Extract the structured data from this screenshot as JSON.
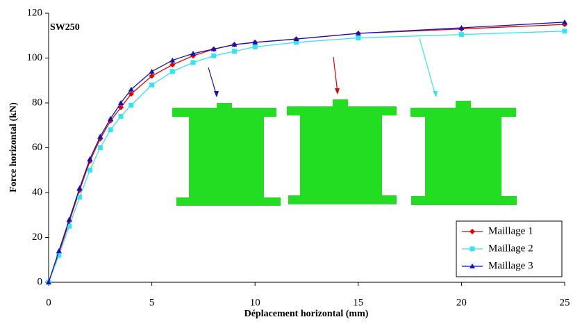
{
  "chart_data": {
    "type": "line",
    "annotation": "SW250",
    "x_label": "Déplacement horizontal (mm)",
    "y_label": "Force horizontal (kN)",
    "x": [
      0,
      0.5,
      1,
      1.5,
      2,
      2.5,
      3,
      3.5,
      4,
      5,
      6,
      7,
      8,
      9,
      10,
      12,
      15,
      20,
      25
    ],
    "series": [
      {
        "name": "Maillage 1",
        "color": "#e00000",
        "marker": "diamond",
        "values": [
          0,
          13,
          27,
          41,
          54,
          64,
          72,
          78,
          84,
          92,
          97,
          101,
          104,
          106,
          107,
          108.5,
          111,
          113,
          115
        ]
      },
      {
        "name": "Maillage 2",
        "color": "#33e5f0",
        "marker": "square",
        "values": [
          0,
          12,
          25,
          38,
          50,
          60,
          68,
          74,
          79,
          88,
          94,
          98,
          101,
          103,
          105,
          107,
          109,
          110.5,
          112
        ]
      },
      {
        "name": "Maillage 3",
        "color": "#1010c0",
        "marker": "triangle",
        "values": [
          0,
          14,
          28,
          42,
          55,
          65,
          73,
          80,
          86,
          94,
          99,
          102,
          104,
          106,
          107,
          108.5,
          111,
          113.5,
          116
        ]
      }
    ],
    "xlim": [
      0,
      25
    ],
    "xticks": [
      0,
      5,
      10,
      15,
      20,
      25
    ],
    "ylim": [
      0,
      120
    ],
    "yticks": [
      0,
      20,
      40,
      60,
      80,
      100,
      120
    ],
    "legend": "lower right",
    "grid": false
  }
}
